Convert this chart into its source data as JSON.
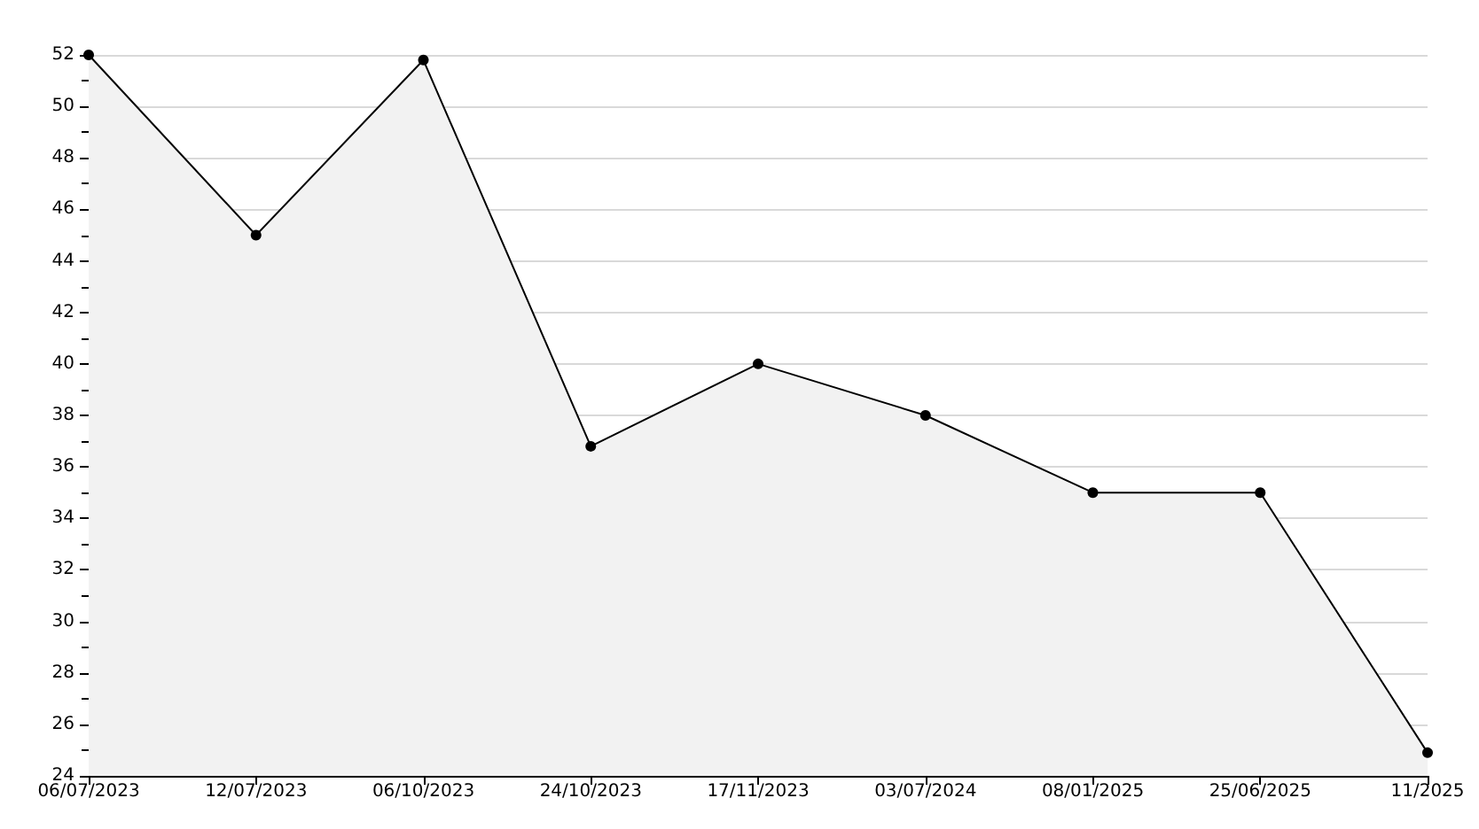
{
  "chart_data": {
    "type": "area",
    "categories": [
      "06/07/2023",
      "12/07/2023",
      "06/10/2023",
      "24/10/2023",
      "17/11/2023",
      "03/07/2024",
      "08/01/2025",
      "25/06/2025",
      "11/2025"
    ],
    "series": [
      {
        "color": "#000000",
        "values": [
          52,
          45,
          51.8,
          36.8,
          40,
          38,
          35,
          35,
          24.9
        ]
      }
    ],
    "ylim": [
      24,
      52
    ],
    "yticks": [
      24,
      26,
      28,
      30,
      32,
      34,
      36,
      38,
      40,
      42,
      44,
      46,
      48,
      50,
      52
    ],
    "grid": "y",
    "marker": "circle",
    "line_style": "solid"
  }
}
